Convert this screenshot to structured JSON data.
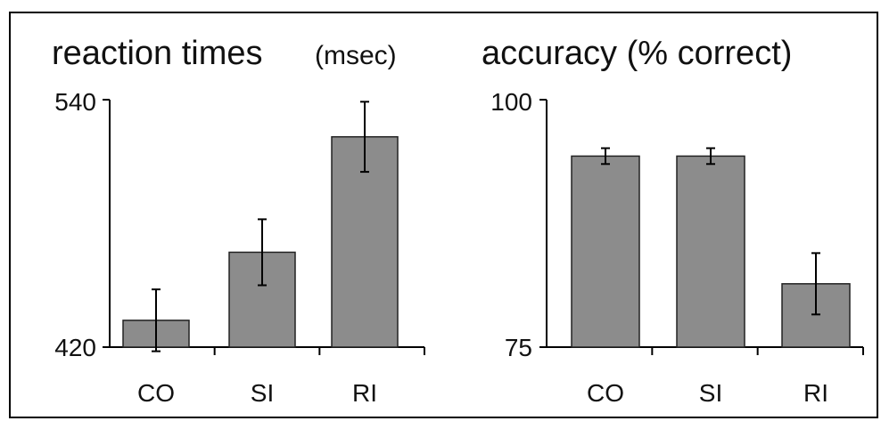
{
  "chart_data": [
    {
      "type": "bar",
      "title": "reaction times",
      "title_unit": "(msec)",
      "categories": [
        "CO",
        "SI",
        "RI"
      ],
      "values": [
        433,
        466,
        522
      ],
      "error": [
        15,
        16,
        17
      ],
      "ylim": [
        420,
        540
      ],
      "yticks": [
        "540",
        "420"
      ],
      "bar_color": "#8c8c8c"
    },
    {
      "type": "bar",
      "title": "accuracy (% correct)",
      "title_unit": "",
      "categories": [
        "CO",
        "SI",
        "RI"
      ],
      "values": [
        94.3,
        94.3,
        81.4
      ],
      "error": [
        0.8,
        0.8,
        3.1
      ],
      "ylim": [
        75,
        100
      ],
      "yticks": [
        "100",
        "75"
      ],
      "bar_color": "#8c8c8c"
    }
  ]
}
